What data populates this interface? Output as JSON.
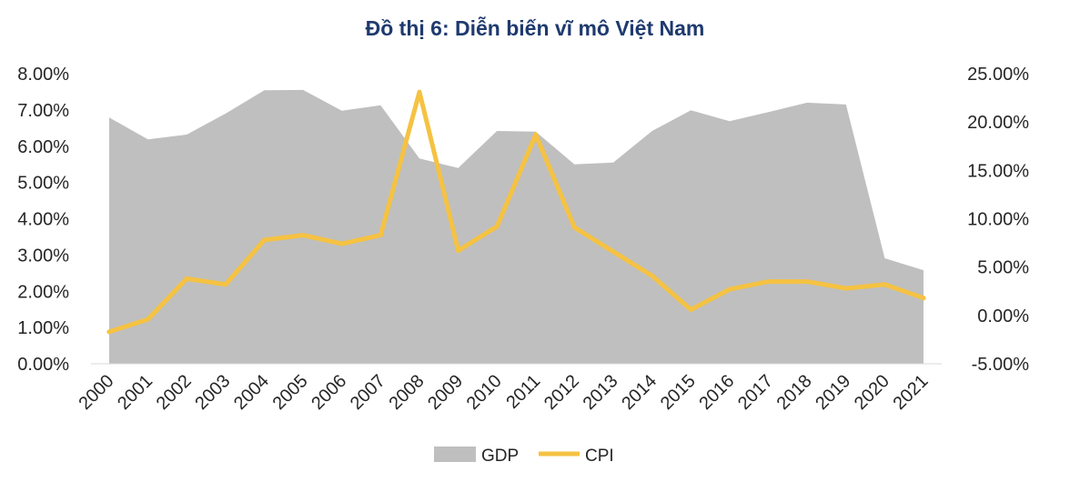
{
  "chart_data": {
    "type": "area",
    "title": "Đồ thị 6: Diễn biến vĩ mô Việt Nam",
    "categories": [
      "2000",
      "2001",
      "2002",
      "2003",
      "2004",
      "2005",
      "2006",
      "2007",
      "2008",
      "2009",
      "2010",
      "2011",
      "2012",
      "2013",
      "2014",
      "2015",
      "2016",
      "2017",
      "2018",
      "2019",
      "2020",
      "2021"
    ],
    "series": [
      {
        "name": "GDP",
        "type": "area",
        "axis": "left",
        "color": "#bfbfbf",
        "values": [
          6.79,
          6.19,
          6.32,
          6.9,
          7.54,
          7.55,
          6.98,
          7.13,
          5.66,
          5.4,
          6.42,
          6.4,
          5.5,
          5.55,
          6.42,
          6.99,
          6.69,
          6.94,
          7.2,
          7.15,
          2.91,
          2.58
        ]
      },
      {
        "name": "CPI",
        "type": "line",
        "axis": "right",
        "color": "#f5c242",
        "values": [
          -1.7,
          -0.4,
          3.8,
          3.2,
          7.8,
          8.3,
          7.4,
          8.3,
          23.1,
          6.7,
          9.2,
          18.7,
          9.1,
          6.6,
          4.1,
          0.6,
          2.7,
          3.5,
          3.5,
          2.8,
          3.2,
          1.8
        ]
      }
    ],
    "y_left": {
      "ylim": [
        0,
        8
      ],
      "ticks": [
        0,
        1,
        2,
        3,
        4,
        5,
        6,
        7,
        8
      ],
      "tick_labels": [
        "0.00%",
        "1.00%",
        "2.00%",
        "3.00%",
        "4.00%",
        "5.00%",
        "6.00%",
        "7.00%",
        "8.00%"
      ]
    },
    "y_right": {
      "ylim": [
        -5,
        25
      ],
      "ticks": [
        -5,
        0,
        5,
        10,
        15,
        20,
        25
      ],
      "tick_labels": [
        "-5.00%",
        "0.00%",
        "5.00%",
        "10.00%",
        "15.00%",
        "20.00%",
        "25.00%"
      ]
    },
    "legend": {
      "position": "bottom",
      "entries": [
        "GDP",
        "CPI"
      ]
    },
    "grid": false
  }
}
